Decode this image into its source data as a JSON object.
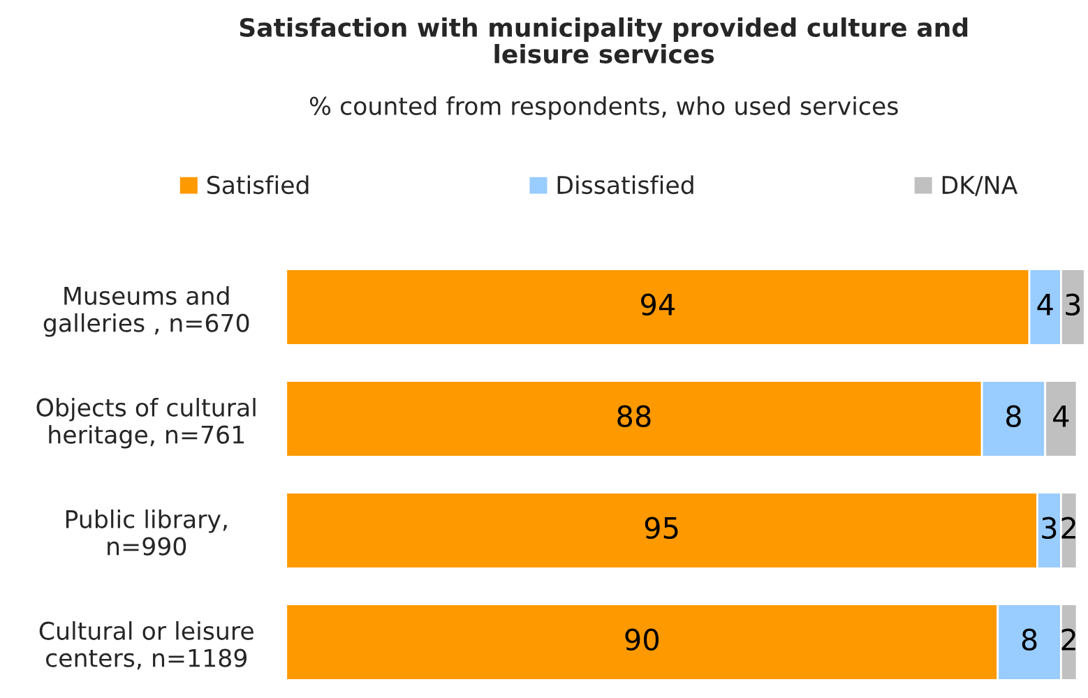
{
  "chart_data": {
    "type": "bar",
    "orientation": "horizontal",
    "stacked": true,
    "data_labels": true,
    "legend": "top",
    "grid": false,
    "title": "Satisfaction with municipality provided culture and\nleisure services",
    "subtitle": "% counted from respondents, who used services",
    "categories": [
      "Museums and\ngalleries , n=670",
      "Objects of cultural\nheritage, n=761",
      "Public library,\nn=990",
      "Cultural or leisure\ncenters, n=1189"
    ],
    "series": [
      {
        "name": "Satisfied",
        "color": "#ff9900",
        "values": [
          94,
          88,
          95,
          90
        ]
      },
      {
        "name": "Dissatisfied",
        "color": "#99ccff",
        "values": [
          4,
          8,
          3,
          8
        ]
      },
      {
        "name": "DK/NA",
        "color": "#c0c0c0",
        "values": [
          3,
          4,
          2,
          2
        ]
      }
    ]
  }
}
